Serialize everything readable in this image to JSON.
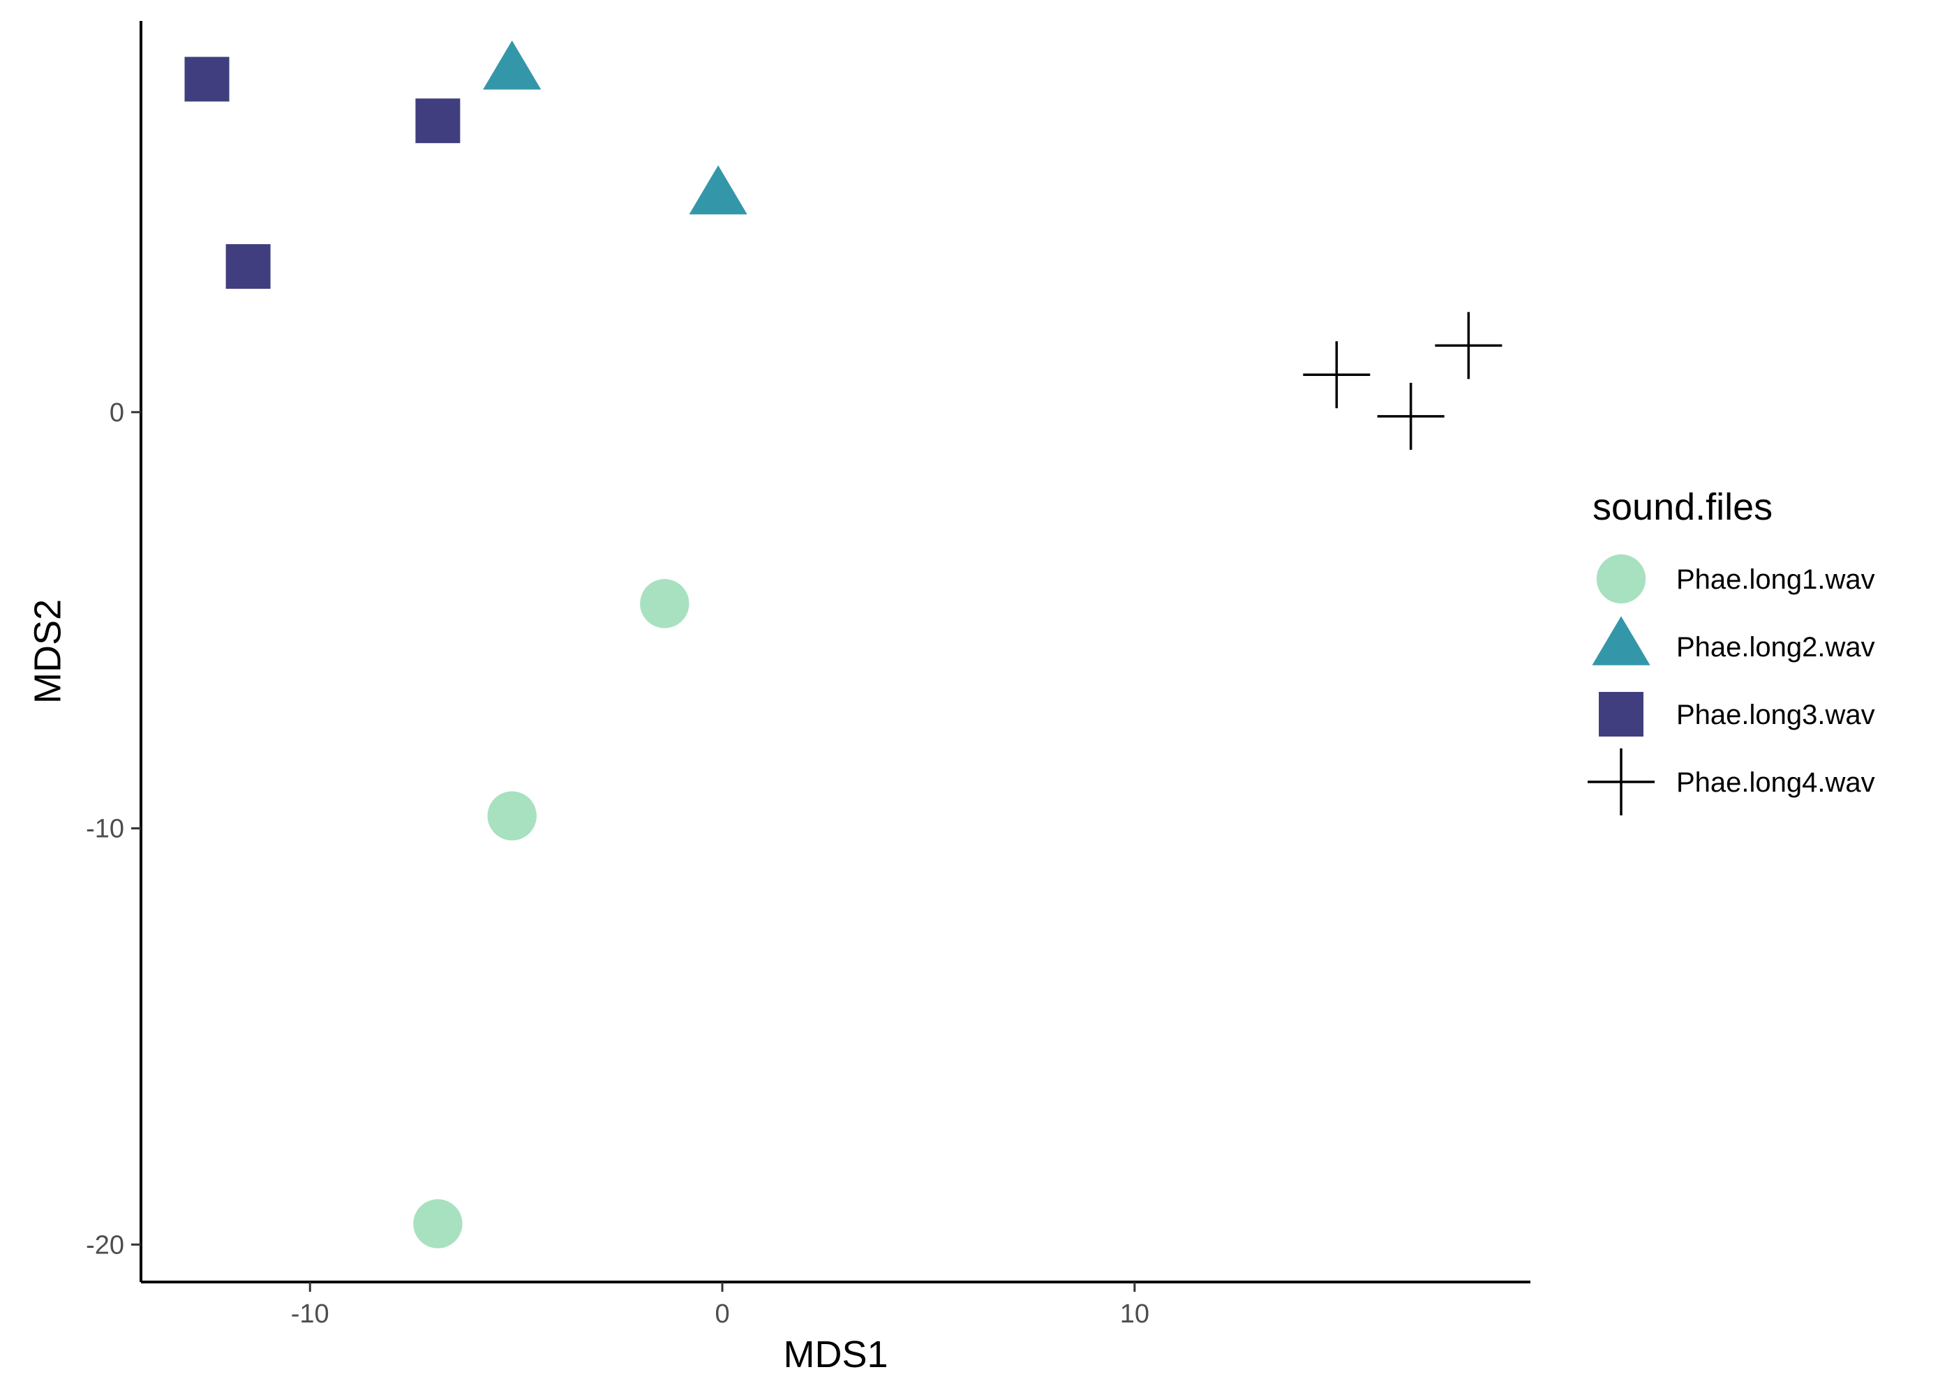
{
  "chart_data": {
    "type": "scatter",
    "title": "",
    "xlabel": "MDS1",
    "ylabel": "MDS2",
    "xlim": [
      -14.1,
      19.6
    ],
    "ylim": [
      -20.9,
      9.4
    ],
    "x_ticks": [
      -10,
      0,
      10
    ],
    "y_ticks": [
      -20,
      -10,
      0
    ],
    "x_tick_labels": [
      "-10",
      "0",
      "10"
    ],
    "y_tick_labels": [
      "-20",
      "-10",
      "0"
    ],
    "grid": false,
    "legend": {
      "title": "sound.files",
      "placement": "right"
    },
    "series": [
      {
        "name": "Phae.long1.wav",
        "shape": "circle",
        "color": "#A8E1C0",
        "points": [
          [
            -1.4,
            -4.6
          ],
          [
            -5.1,
            -9.7
          ],
          [
            -6.9,
            -19.5
          ]
        ]
      },
      {
        "name": "Phae.long2.wav",
        "shape": "triangle",
        "color": "#3497A9",
        "points": [
          [
            -5.1,
            8.2
          ],
          [
            -0.1,
            5.2
          ]
        ]
      },
      {
        "name": "Phae.long3.wav",
        "shape": "square",
        "color": "#413E7F",
        "points": [
          [
            -12.5,
            8.0
          ],
          [
            -6.9,
            7.0
          ],
          [
            -11.5,
            3.5
          ]
        ]
      },
      {
        "name": "Phae.long4.wav",
        "shape": "plus",
        "color": "#000000",
        "points": [
          [
            14.9,
            0.9
          ],
          [
            16.7,
            -0.1
          ],
          [
            18.1,
            1.6
          ]
        ]
      }
    ]
  }
}
